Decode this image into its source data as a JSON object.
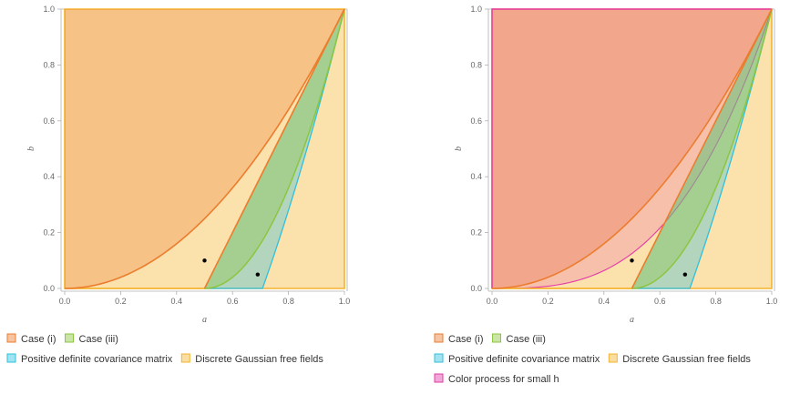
{
  "colors": {
    "case_i": "#ec7c2e",
    "case_iii": "#8cc63f",
    "pos_def": "#2ec1de",
    "dgff": "#f5b32f",
    "color_process": "#e53aa8"
  },
  "chart_data": [
    {
      "type": "area",
      "title": "",
      "xlabel": "a",
      "ylabel": "b",
      "xlim": [
        0,
        1
      ],
      "ylim": [
        0,
        1
      ],
      "x_ticks": [
        "0.0",
        "0.2",
        "0.4",
        "0.6",
        "0.8",
        "1.0"
      ],
      "y_ticks": [
        "0.0",
        "0.2",
        "0.4",
        "0.6",
        "0.8",
        "1.0"
      ],
      "grid": false,
      "legend_position": "bottom",
      "regions": [
        {
          "name": "Discrete Gaussian free fields",
          "series_key": "dgff",
          "boundary": "0 <= b <= 1, 0 <= a <= 1"
        },
        {
          "name": "Case (i)",
          "series_key": "case_i",
          "boundary": "a^2 <= b <= 1, 0 <= a <= 1"
        },
        {
          "name": "Case (iii)",
          "series_key": "case_iii",
          "boundary": "b >= 0, b <= 2a - 1, b >= (2a - 1)^2"
        },
        {
          "name": "Positive definite covariance matrix",
          "series_key": "pos_def",
          "boundary": "b >= 0, b <= 2a - 1, b >= 2a^2 - 1"
        }
      ],
      "points": [
        {
          "x": 0.5,
          "y": 0.1
        },
        {
          "x": 0.69,
          "y": 0.05
        }
      ],
      "legend": [
        [
          {
            "label": "Case (i)",
            "key": "case_i"
          },
          {
            "label": "Case (iii)",
            "key": "case_iii"
          }
        ],
        [
          {
            "label": "Positive definite covariance matrix",
            "key": "pos_def"
          },
          {
            "label": "Discrete Gaussian free fields",
            "key": "dgff"
          }
        ]
      ]
    },
    {
      "type": "area",
      "title": "",
      "xlabel": "a",
      "ylabel": "b",
      "xlim": [
        0,
        1
      ],
      "ylim": [
        0,
        1
      ],
      "x_ticks": [
        "0.0",
        "0.2",
        "0.4",
        "0.6",
        "0.8",
        "1.0"
      ],
      "y_ticks": [
        "0.0",
        "0.2",
        "0.4",
        "0.6",
        "0.8",
        "1.0"
      ],
      "grid": false,
      "legend_position": "bottom",
      "regions": [
        {
          "name": "Discrete Gaussian free fields",
          "series_key": "dgff",
          "boundary": "0 <= b <= 1, 0 <= a <= 1"
        },
        {
          "name": "Case (i)",
          "series_key": "case_i",
          "boundary": "a^2 <= b <= 1, 0 <= a <= 1"
        },
        {
          "name": "Case (iii)",
          "series_key": "case_iii",
          "boundary": "b >= 0, b <= 2a - 1, b >= (2a - 1)^2"
        },
        {
          "name": "Positive definite covariance matrix",
          "series_key": "pos_def",
          "boundary": "b >= 0, b <= 2a - 1, b >= 2a^2 - 1"
        },
        {
          "name": "Color process for small h",
          "series_key": "color_process",
          "boundary": "a^3 <= b <= 1, 0 <= a <= 1"
        }
      ],
      "points": [
        {
          "x": 0.5,
          "y": 0.1
        },
        {
          "x": 0.69,
          "y": 0.05
        }
      ],
      "legend": [
        [
          {
            "label": "Case (i)",
            "key": "case_i"
          },
          {
            "label": "Case (iii)",
            "key": "case_iii"
          }
        ],
        [
          {
            "label": "Positive definite covariance matrix",
            "key": "pos_def"
          },
          {
            "label": "Discrete Gaussian free fields",
            "key": "dgff"
          }
        ],
        [
          {
            "label": "Color process for small h",
            "key": "color_process"
          }
        ]
      ]
    }
  ]
}
